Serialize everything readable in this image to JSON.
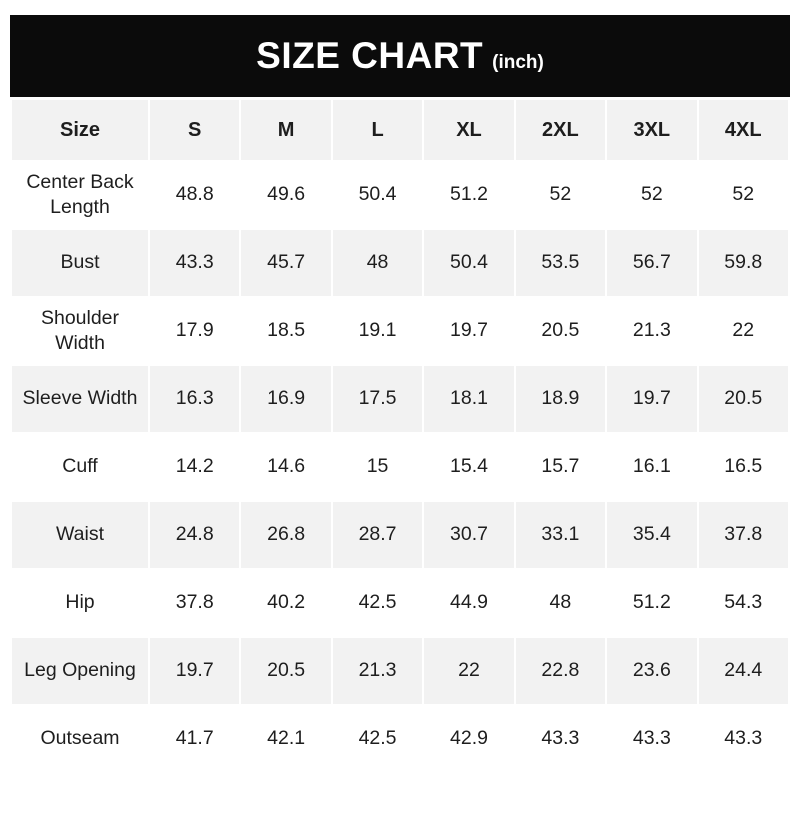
{
  "banner": {
    "title": "SIZE CHART",
    "unit_label": "(inch)"
  },
  "colors": {
    "banner_bg": "#0b0b0b",
    "banner_text": "#ffffff",
    "stripe_row_bg": "#f2f2f2",
    "plain_row_bg": "#ffffff",
    "text": "#1e1e1e"
  },
  "chart_data": {
    "type": "table",
    "title": "SIZE CHART (inch)",
    "unit": "inch",
    "columns": [
      "Size",
      "S",
      "M",
      "L",
      "XL",
      "2XL",
      "3XL",
      "4XL"
    ],
    "rows": [
      {
        "label": "Center Back Length",
        "values": [
          "48.8",
          "49.6",
          "50.4",
          "51.2",
          "52",
          "52",
          "52"
        ]
      },
      {
        "label": "Bust",
        "values": [
          "43.3",
          "45.7",
          "48",
          "50.4",
          "53.5",
          "56.7",
          "59.8"
        ]
      },
      {
        "label": "Shoulder Width",
        "values": [
          "17.9",
          "18.5",
          "19.1",
          "19.7",
          "20.5",
          "21.3",
          "22"
        ]
      },
      {
        "label": "Sleeve Width",
        "values": [
          "16.3",
          "16.9",
          "17.5",
          "18.1",
          "18.9",
          "19.7",
          "20.5"
        ]
      },
      {
        "label": "Cuff",
        "values": [
          "14.2",
          "14.6",
          "15",
          "15.4",
          "15.7",
          "16.1",
          "16.5"
        ]
      },
      {
        "label": "Waist",
        "values": [
          "24.8",
          "26.8",
          "28.7",
          "30.7",
          "33.1",
          "35.4",
          "37.8"
        ]
      },
      {
        "label": "Hip",
        "values": [
          "37.8",
          "40.2",
          "42.5",
          "44.9",
          "48",
          "51.2",
          "54.3"
        ]
      },
      {
        "label": "Leg Opening",
        "values": [
          "19.7",
          "20.5",
          "21.3",
          "22",
          "22.8",
          "23.6",
          "24.4"
        ]
      },
      {
        "label": "Outseam",
        "values": [
          "41.7",
          "42.1",
          "42.5",
          "42.9",
          "43.3",
          "43.3",
          "43.3"
        ]
      }
    ]
  }
}
